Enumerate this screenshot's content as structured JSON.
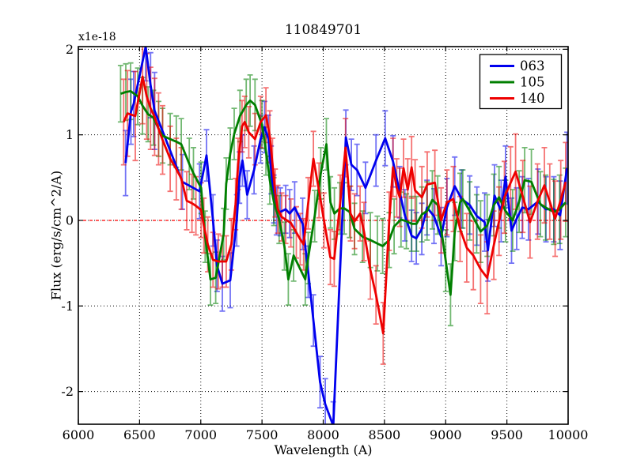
{
  "figure": {
    "title": "110849701",
    "offset_text": "x1e-18",
    "xlabel": "Wavelength (A)",
    "ylabel": "Flux (erg/s/cm^2/A)"
  },
  "chart_data": {
    "type": "line",
    "title": "110849701",
    "xlabel": "Wavelength (A)",
    "ylabel": "Flux (erg/s/cm^2/A)",
    "y_offset_factor": "x1e-18",
    "xlim": [
      6000,
      10000
    ],
    "ylim": [
      -2.382,
      2.031
    ],
    "xticks": [
      6000,
      6500,
      7000,
      7500,
      8000,
      8500,
      9000,
      9500,
      10000
    ],
    "yticks": [
      -2,
      -1,
      0,
      1,
      2
    ],
    "grid": true,
    "grid_style": "dotted-black",
    "zero_line": {
      "y": 0,
      "color": "#ff0000",
      "style": "dashed"
    },
    "legend": {
      "position": "upper right",
      "entries": [
        "063",
        "105",
        "140"
      ]
    },
    "errorbar_alpha": 0.55,
    "series": [
      {
        "name": "063",
        "color": "#0000ee",
        "points_format": [
          "wavelength_A",
          "flux_1e-18",
          "err"
        ],
        "points": [
          [
            6386,
            0.67,
            0.38
          ],
          [
            6430,
            1.27,
            0.38
          ],
          [
            6452,
            1.36,
            0.38
          ],
          [
            6550,
            2.03,
            0.4
          ],
          [
            6590,
            1.58,
            0.38
          ],
          [
            6623,
            1.28,
            0.45
          ],
          [
            6850,
            0.45,
            0.32
          ],
          [
            6990,
            0.34,
            0.32
          ],
          [
            7047,
            0.76,
            0.3
          ],
          [
            7100,
            0.0,
            0.3
          ],
          [
            7133,
            -0.53,
            0.3
          ],
          [
            7176,
            -0.74,
            0.32
          ],
          [
            7241,
            -0.7,
            0.32
          ],
          [
            7294,
            0.0,
            0.3
          ],
          [
            7316,
            0.5,
            0.3
          ],
          [
            7340,
            0.7,
            0.3
          ],
          [
            7379,
            0.3,
            0.28
          ],
          [
            7435,
            0.59,
            0.28
          ],
          [
            7489,
            0.95,
            0.28
          ],
          [
            7521,
            1.09,
            0.3
          ],
          [
            7553,
            0.95,
            0.28
          ],
          [
            7575,
            0.59,
            0.28
          ],
          [
            7597,
            0.25,
            0.28
          ],
          [
            7618,
            0.11,
            0.28
          ],
          [
            7650,
            0.1,
            0.28
          ],
          [
            7694,
            0.13,
            0.28
          ],
          [
            7726,
            0.08,
            0.28
          ],
          [
            7767,
            0.15,
            0.3
          ],
          [
            7832,
            -0.04,
            0.3
          ],
          [
            7877,
            -0.6,
            0.3
          ],
          [
            7920,
            -1.17,
            0.3
          ],
          [
            7974,
            -1.89,
            0.3
          ],
          [
            8017,
            -2.15,
            0.3
          ],
          [
            8082,
            -2.4,
            0.28
          ],
          [
            8185,
            0.97,
            0.32
          ],
          [
            8230,
            0.65,
            0.3
          ],
          [
            8276,
            0.59,
            0.3
          ],
          [
            8345,
            0.38,
            0.3
          ],
          [
            8431,
            0.7,
            0.3
          ],
          [
            8506,
            0.96,
            0.32
          ],
          [
            8570,
            0.69,
            0.3
          ],
          [
            8624,
            0.33,
            0.3
          ],
          [
            8667,
            0.06,
            0.3
          ],
          [
            8722,
            -0.18,
            0.3
          ],
          [
            8760,
            -0.21,
            0.3
          ],
          [
            8805,
            -0.1,
            0.3
          ],
          [
            8848,
            0.15,
            0.32
          ],
          [
            8905,
            0.05,
            0.32
          ],
          [
            8963,
            -0.19,
            0.34
          ],
          [
            9010,
            0.15,
            0.34
          ],
          [
            9074,
            0.4,
            0.34
          ],
          [
            9130,
            0.25,
            0.34
          ],
          [
            9196,
            0.18,
            0.34
          ],
          [
            9255,
            0.05,
            0.34
          ],
          [
            9318,
            -0.02,
            0.34
          ],
          [
            9345,
            -0.35,
            0.36
          ],
          [
            9399,
            0.29,
            0.36
          ],
          [
            9453,
            0.11,
            0.36
          ],
          [
            9489,
            0.51,
            0.36
          ],
          [
            9538,
            -0.12,
            0.38
          ],
          [
            9580,
            0.02,
            0.36
          ],
          [
            9625,
            0.15,
            0.36
          ],
          [
            9676,
            0.13,
            0.36
          ],
          [
            9754,
            0.22,
            0.38
          ],
          [
            9819,
            0.13,
            0.38
          ],
          [
            9883,
            0.13,
            0.38
          ],
          [
            9935,
            0.06,
            0.4
          ],
          [
            9991,
            0.61,
            0.42
          ]
        ]
      },
      {
        "name": "105",
        "color": "#007f00",
        "points_format": [
          "wavelength_A",
          "flux_1e-18",
          "err"
        ],
        "points": [
          [
            6345,
            1.48,
            0.33
          ],
          [
            6388,
            1.5,
            0.33
          ],
          [
            6427,
            1.51,
            0.33
          ],
          [
            6485,
            1.45,
            0.33
          ],
          [
            6524,
            1.34,
            0.33
          ],
          [
            6570,
            1.24,
            0.32
          ],
          [
            6613,
            1.2,
            0.32
          ],
          [
            6656,
            1.07,
            0.32
          ],
          [
            6688,
            0.99,
            0.32
          ],
          [
            6750,
            0.95,
            0.3
          ],
          [
            6800,
            0.92,
            0.3
          ],
          [
            6841,
            0.89,
            0.3
          ],
          [
            6906,
            0.66,
            0.3
          ],
          [
            6940,
            0.55,
            0.3
          ],
          [
            7003,
            0.38,
            0.3
          ],
          [
            7036,
            -0.19,
            0.3
          ],
          [
            7079,
            -0.69,
            0.3
          ],
          [
            7122,
            -0.67,
            0.3
          ],
          [
            7187,
            -0.16,
            0.3
          ],
          [
            7208,
            0.43,
            0.3
          ],
          [
            7241,
            0.78,
            0.3
          ],
          [
            7273,
            1.01,
            0.3
          ],
          [
            7320,
            1.22,
            0.3
          ],
          [
            7371,
            1.35,
            0.3
          ],
          [
            7403,
            1.4,
            0.3
          ],
          [
            7443,
            1.35,
            0.3
          ],
          [
            7500,
            1.12,
            0.28
          ],
          [
            7532,
            0.81,
            0.28
          ],
          [
            7564,
            0.47,
            0.28
          ],
          [
            7597,
            0.22,
            0.28
          ],
          [
            7640,
            0.01,
            0.28
          ],
          [
            7683,
            -0.3,
            0.28
          ],
          [
            7715,
            -0.69,
            0.3
          ],
          [
            7758,
            -0.41,
            0.3
          ],
          [
            7853,
            -0.69,
            0.3
          ],
          [
            7877,
            -0.44,
            0.3
          ],
          [
            7930,
            0.05,
            0.3
          ],
          [
            7980,
            0.55,
            0.3
          ],
          [
            8026,
            0.89,
            0.3
          ],
          [
            8059,
            0.21,
            0.3
          ],
          [
            8091,
            0.08,
            0.3
          ],
          [
            8136,
            0.14,
            0.3
          ],
          [
            8172,
            0.14,
            0.3
          ],
          [
            8215,
            0.1,
            0.3
          ],
          [
            8256,
            -0.1,
            0.3
          ],
          [
            8321,
            -0.19,
            0.3
          ],
          [
            8385,
            -0.23,
            0.32
          ],
          [
            8442,
            -0.27,
            0.32
          ],
          [
            8485,
            -0.3,
            0.32
          ],
          [
            8539,
            -0.23,
            0.32
          ],
          [
            8579,
            -0.07,
            0.32
          ],
          [
            8635,
            0.01,
            0.32
          ],
          [
            8679,
            -0.01,
            0.32
          ],
          [
            8722,
            -0.04,
            0.32
          ],
          [
            8762,
            -0.04,
            0.32
          ],
          [
            8806,
            0.07,
            0.32
          ],
          [
            8848,
            0.11,
            0.34
          ],
          [
            8891,
            0.24,
            0.34
          ],
          [
            8935,
            0.18,
            0.34
          ],
          [
            9000,
            -0.47,
            0.36
          ],
          [
            9040,
            -0.87,
            0.36
          ],
          [
            9074,
            -0.13,
            0.34
          ],
          [
            9118,
            0.21,
            0.34
          ],
          [
            9140,
            0.25,
            0.34
          ],
          [
            9196,
            0.11,
            0.34
          ],
          [
            9253,
            -0.04,
            0.34
          ],
          [
            9285,
            -0.13,
            0.36
          ],
          [
            9339,
            -0.06,
            0.36
          ],
          [
            9393,
            0.18,
            0.36
          ],
          [
            9436,
            0.27,
            0.36
          ],
          [
            9489,
            0.11,
            0.36
          ],
          [
            9547,
            0.0,
            0.36
          ],
          [
            9600,
            0.22,
            0.36
          ],
          [
            9645,
            0.47,
            0.38
          ],
          [
            9700,
            0.45,
            0.38
          ],
          [
            9773,
            0.19,
            0.38
          ],
          [
            9816,
            0.15,
            0.38
          ],
          [
            9883,
            0.1,
            0.38
          ],
          [
            9930,
            0.13,
            0.4
          ],
          [
            9980,
            0.21,
            0.4
          ]
        ]
      },
      {
        "name": "140",
        "color": "#ee0000",
        "points_format": [
          "wavelength_A",
          "flux_1e-18",
          "err"
        ],
        "points": [
          [
            6370,
            1.15,
            0.5
          ],
          [
            6402,
            1.25,
            0.5
          ],
          [
            6465,
            1.22,
            0.52
          ],
          [
            6525,
            1.68,
            0.55
          ],
          [
            6558,
            1.45,
            0.5
          ],
          [
            6590,
            1.31,
            0.48
          ],
          [
            6623,
            1.21,
            0.45
          ],
          [
            6655,
            1.07,
            0.42
          ],
          [
            6688,
            0.94,
            0.4
          ],
          [
            6750,
            0.72,
            0.38
          ],
          [
            6800,
            0.6,
            0.36
          ],
          [
            6841,
            0.49,
            0.36
          ],
          [
            6885,
            0.23,
            0.34
          ],
          [
            6928,
            0.2,
            0.34
          ],
          [
            6960,
            0.17,
            0.34
          ],
          [
            7003,
            0.12,
            0.32
          ],
          [
            7025,
            -0.06,
            0.32
          ],
          [
            7057,
            -0.28,
            0.32
          ],
          [
            7100,
            -0.46,
            0.32
          ],
          [
            7143,
            -0.48,
            0.32
          ],
          [
            7176,
            -0.48,
            0.3
          ],
          [
            7208,
            -0.48,
            0.3
          ],
          [
            7250,
            -0.28,
            0.3
          ],
          [
            7284,
            0.19,
            0.3
          ],
          [
            7305,
            0.66,
            0.3
          ],
          [
            7337,
            1.1,
            0.3
          ],
          [
            7359,
            1.15,
            0.3
          ],
          [
            7392,
            1.03,
            0.3
          ],
          [
            7443,
            0.95,
            0.3
          ],
          [
            7489,
            1.15,
            0.3
          ],
          [
            7532,
            1.23,
            0.32
          ],
          [
            7564,
            0.98,
            0.3
          ],
          [
            7586,
            0.66,
            0.3
          ],
          [
            7608,
            0.32,
            0.28
          ],
          [
            7629,
            0.13,
            0.28
          ],
          [
            7661,
            0.04,
            0.28
          ],
          [
            7694,
            0.01,
            0.28
          ],
          [
            7736,
            -0.03,
            0.28
          ],
          [
            7780,
            -0.14,
            0.3
          ],
          [
            7812,
            -0.22,
            0.3
          ],
          [
            7840,
            -0.28,
            0.3
          ],
          [
            7877,
            0.2,
            0.3
          ],
          [
            7920,
            0.72,
            0.32
          ],
          [
            7966,
            0.35,
            0.32
          ],
          [
            8006,
            0.0,
            0.32
          ],
          [
            8058,
            -0.43,
            0.32
          ],
          [
            8090,
            -0.45,
            0.32
          ],
          [
            8139,
            0.21,
            0.32
          ],
          [
            8182,
            0.85,
            0.34
          ],
          [
            8223,
            0.08,
            0.32
          ],
          [
            8256,
            -0.01,
            0.32
          ],
          [
            8301,
            0.08,
            0.32
          ],
          [
            8333,
            -0.13,
            0.34
          ],
          [
            8385,
            -0.58,
            0.34
          ],
          [
            8431,
            -0.87,
            0.34
          ],
          [
            8490,
            -1.32,
            0.36
          ],
          [
            8539,
            -0.01,
            0.34
          ],
          [
            8570,
            0.62,
            0.34
          ],
          [
            8600,
            0.38,
            0.34
          ],
          [
            8625,
            0.27,
            0.34
          ],
          [
            8656,
            0.61,
            0.34
          ],
          [
            8690,
            0.36,
            0.36
          ],
          [
            8722,
            0.62,
            0.36
          ],
          [
            8750,
            0.35,
            0.36
          ],
          [
            8806,
            0.27,
            0.36
          ],
          [
            8849,
            0.42,
            0.38
          ],
          [
            8912,
            0.44,
            0.38
          ],
          [
            8963,
            0.0,
            0.38
          ],
          [
            9010,
            0.21,
            0.38
          ],
          [
            9063,
            0.25,
            0.38
          ],
          [
            9118,
            -0.1,
            0.38
          ],
          [
            9172,
            -0.32,
            0.4
          ],
          [
            9226,
            -0.41,
            0.4
          ],
          [
            9285,
            -0.57,
            0.4
          ],
          [
            9339,
            -0.67,
            0.42
          ],
          [
            9393,
            -0.29,
            0.4
          ],
          [
            9436,
            -0.01,
            0.4
          ],
          [
            9480,
            0.27,
            0.42
          ],
          [
            9530,
            0.44,
            0.42
          ],
          [
            9571,
            0.57,
            0.44
          ],
          [
            9630,
            0.28,
            0.42
          ],
          [
            9689,
            -0.02,
            0.42
          ],
          [
            9750,
            0.22,
            0.44
          ],
          [
            9806,
            0.41,
            0.44
          ],
          [
            9850,
            0.22,
            0.44
          ],
          [
            9894,
            0.02,
            0.44
          ],
          [
            9940,
            0.24,
            0.46
          ],
          [
            9980,
            0.45,
            0.46
          ]
        ]
      }
    ]
  }
}
